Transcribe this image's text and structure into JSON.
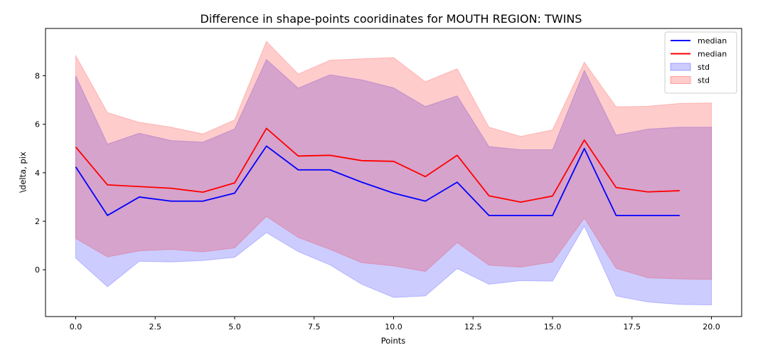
{
  "chart_data": {
    "type": "line",
    "title": "Difference in shape-points cooridinates for MOUTH REGION: TWINS",
    "xlabel": "Points",
    "ylabel": "\\delta, pix",
    "xlim": [
      -0.95,
      20.95
    ],
    "ylim": [
      -1.93,
      9.95
    ],
    "xticks": [
      0.0,
      2.5,
      5.0,
      7.5,
      10.0,
      12.5,
      15.0,
      17.5,
      20.0
    ],
    "xtick_labels": [
      "0.0",
      "2.5",
      "5.0",
      "7.5",
      "10.0",
      "12.5",
      "15.0",
      "17.5",
      "20.0"
    ],
    "yticks": [
      0,
      2,
      4,
      6,
      8
    ],
    "ytick_labels": [
      "0",
      "2",
      "4",
      "6",
      "8"
    ],
    "grid": false,
    "legend_position": "top-right",
    "series": [
      {
        "name": "median",
        "kind": "line",
        "color": "#0000ff",
        "x": [
          0,
          1,
          2,
          3,
          4,
          5,
          6,
          7,
          8,
          9,
          10,
          11,
          12,
          13,
          14,
          15,
          16,
          17,
          18,
          19
        ],
        "y": [
          4.24,
          2.24,
          3.0,
          2.83,
          2.83,
          3.16,
          5.1,
          4.12,
          4.12,
          3.61,
          3.16,
          2.83,
          3.61,
          2.24,
          2.24,
          2.24,
          5.0,
          2.24,
          2.24,
          2.24
        ]
      },
      {
        "name": "median",
        "kind": "line",
        "color": "#ff0000",
        "x": [
          0,
          1,
          2,
          3,
          4,
          5,
          6,
          7,
          8,
          9,
          10,
          11,
          12,
          13,
          14,
          15,
          16,
          17,
          18,
          19
        ],
        "y": [
          5.06,
          3.5,
          3.43,
          3.36,
          3.2,
          3.58,
          5.83,
          4.69,
          4.72,
          4.5,
          4.47,
          3.84,
          4.72,
          3.05,
          2.79,
          3.04,
          5.35,
          3.39,
          3.21,
          3.26
        ]
      },
      {
        "name": "std",
        "kind": "band",
        "color": "#0000ff",
        "x": [
          0,
          1,
          2,
          3,
          4,
          5,
          6,
          7,
          8,
          9,
          10,
          11,
          12,
          13,
          14,
          15,
          16,
          17,
          18,
          19,
          20
        ],
        "lower": [
          0.48,
          -0.7,
          0.35,
          0.32,
          0.38,
          0.51,
          1.53,
          0.75,
          0.2,
          -0.6,
          -1.14,
          -1.08,
          0.05,
          -0.6,
          -0.45,
          -0.47,
          1.8,
          -1.08,
          -1.33,
          -1.43,
          -1.45
        ],
        "upper": [
          8.0,
          5.18,
          5.63,
          5.33,
          5.26,
          5.81,
          8.67,
          7.49,
          8.04,
          7.83,
          7.5,
          6.73,
          7.17,
          5.08,
          4.95,
          4.95,
          8.22,
          5.55,
          5.8,
          5.88,
          5.88
        ]
      },
      {
        "name": "std",
        "kind": "band",
        "color": "#ff0000",
        "x": [
          0,
          1,
          2,
          3,
          4,
          5,
          6,
          7,
          8,
          9,
          10,
          11,
          12,
          13,
          14,
          15,
          16,
          17,
          18,
          19,
          20
        ],
        "lower": [
          1.29,
          0.53,
          0.78,
          0.84,
          0.74,
          0.9,
          2.2,
          1.33,
          0.84,
          0.29,
          0.16,
          -0.07,
          1.12,
          0.19,
          0.11,
          0.32,
          2.13,
          0.06,
          -0.33,
          -0.38,
          -0.4
        ],
        "upper": [
          8.83,
          6.48,
          6.08,
          5.88,
          5.6,
          6.18,
          9.42,
          8.07,
          8.64,
          8.7,
          8.75,
          7.75,
          8.29,
          5.88,
          5.5,
          5.77,
          8.56,
          6.72,
          6.74,
          6.86,
          6.88
        ]
      }
    ]
  }
}
